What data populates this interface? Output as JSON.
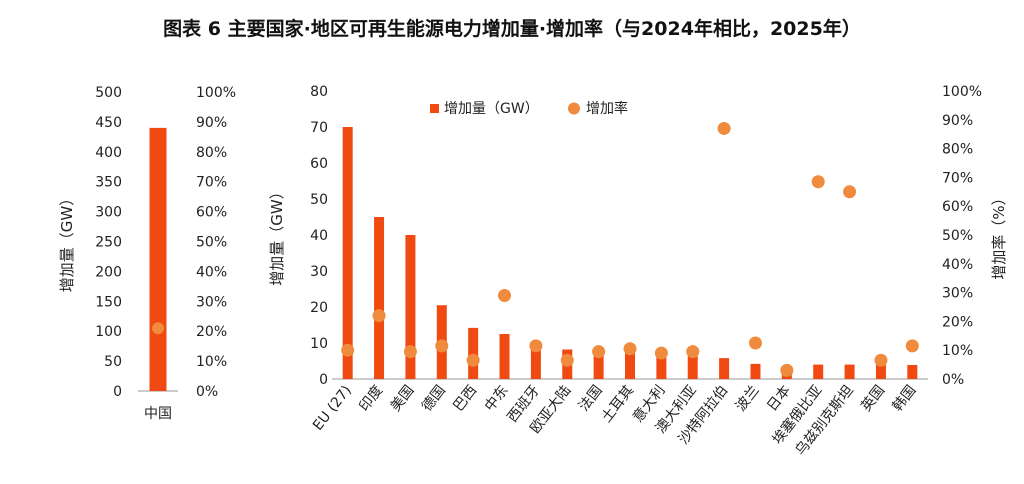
{
  "title": "图表 6  主要国家·地区可再生能源电力增加量·增加率（与2024年相比，2025年）",
  "colors": {
    "bar": "#f04a12",
    "dot": "#f08a3c",
    "axis": "#999999"
  },
  "chart_data": [
    {
      "type": "bar",
      "categories": [
        "中国"
      ],
      "series": [
        {
          "kind": "bar",
          "axis": "left",
          "values": [
            440
          ]
        },
        {
          "kind": "scatter",
          "axis": "right",
          "values": [
            21
          ]
        }
      ],
      "ylabel": "增加量（GW）",
      "ylim": [
        0,
        500
      ],
      "yticks": [
        "0",
        "50",
        "100",
        "150",
        "200",
        "250",
        "300",
        "350",
        "400",
        "450",
        "500"
      ],
      "y2lim": [
        0,
        100
      ],
      "y2ticks": [
        "0%",
        "10%",
        "20%",
        "30%",
        "40%",
        "50%",
        "60%",
        "70%",
        "80%",
        "90%",
        "100%"
      ],
      "grid": false
    },
    {
      "type": "bar",
      "categories": [
        "EU (27)",
        "印度",
        "美国",
        "德国",
        "巴西",
        "中东",
        "西班牙",
        "欧亚大陆",
        "法国",
        "土耳其",
        "意大利",
        "澳大利亚",
        "沙特阿拉伯",
        "波兰",
        "日本",
        "埃塞俄比亚",
        "乌兹别克斯坦",
        "英国",
        "韩国"
      ],
      "series": [
        {
          "kind": "bar",
          "axis": "left",
          "name": "增加量（GW）",
          "values": [
            70,
            45,
            40,
            20.5,
            14.2,
            12.5,
            9.8,
            8.2,
            7.8,
            7.6,
            6.7,
            6.3,
            5.8,
            4.2,
            3.6,
            4.0,
            4.0,
            4.0,
            3.9
          ]
        },
        {
          "kind": "scatter",
          "axis": "right",
          "name": "增加率",
          "values": [
            10,
            22,
            9.5,
            11.5,
            6.5,
            29,
            11.5,
            6.5,
            9.5,
            10.5,
            9,
            9.5,
            87,
            12.5,
            3,
            68.5,
            65,
            6.5,
            11.5
          ]
        }
      ],
      "ylabel": "增加量（GW）",
      "y2label": "增加率（%）",
      "ylim": [
        0,
        80
      ],
      "yticks": [
        "0",
        "10",
        "20",
        "30",
        "40",
        "50",
        "60",
        "70",
        "80"
      ],
      "y2lim": [
        0,
        100
      ],
      "y2ticks": [
        "0%",
        "10%",
        "20%",
        "30%",
        "40%",
        "50%",
        "60%",
        "70%",
        "80%",
        "90%",
        "100%"
      ],
      "legend": {
        "position": "top",
        "items": [
          "增加量（GW）",
          "增加率"
        ]
      },
      "grid": false
    }
  ]
}
